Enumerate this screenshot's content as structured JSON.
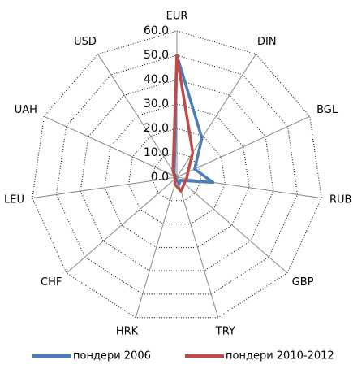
{
  "chart_data": {
    "type": "radar",
    "categories": [
      "EUR",
      "DIN",
      "BGL",
      "RUB",
      "GBP",
      "TRY",
      "HRK",
      "CHF",
      "LEU",
      "UAH",
      "USD"
    ],
    "series": [
      {
        "name": "пондери 2006",
        "color": "#4a7ebb",
        "values": [
          50,
          19,
          8,
          15,
          2,
          3,
          1,
          1,
          1,
          0.5,
          2
        ]
      },
      {
        "name": "пондери 2010-2012",
        "color": "#be4b48",
        "values": [
          50,
          12,
          5,
          4,
          4,
          6,
          3,
          1,
          1,
          1,
          3
        ]
      }
    ],
    "ylim": [
      0,
      60
    ],
    "yticks": [
      {
        "value": 0,
        "label": "0.0"
      },
      {
        "value": 10,
        "label": "10.0"
      },
      {
        "value": 20,
        "label": "20.0"
      },
      {
        "value": 30,
        "label": "30.0"
      },
      {
        "value": 40,
        "label": "40.0"
      },
      {
        "value": 50,
        "label": "50.0"
      },
      {
        "value": 60,
        "label": "60.0"
      }
    ],
    "grid": true,
    "legend": "bottom"
  }
}
